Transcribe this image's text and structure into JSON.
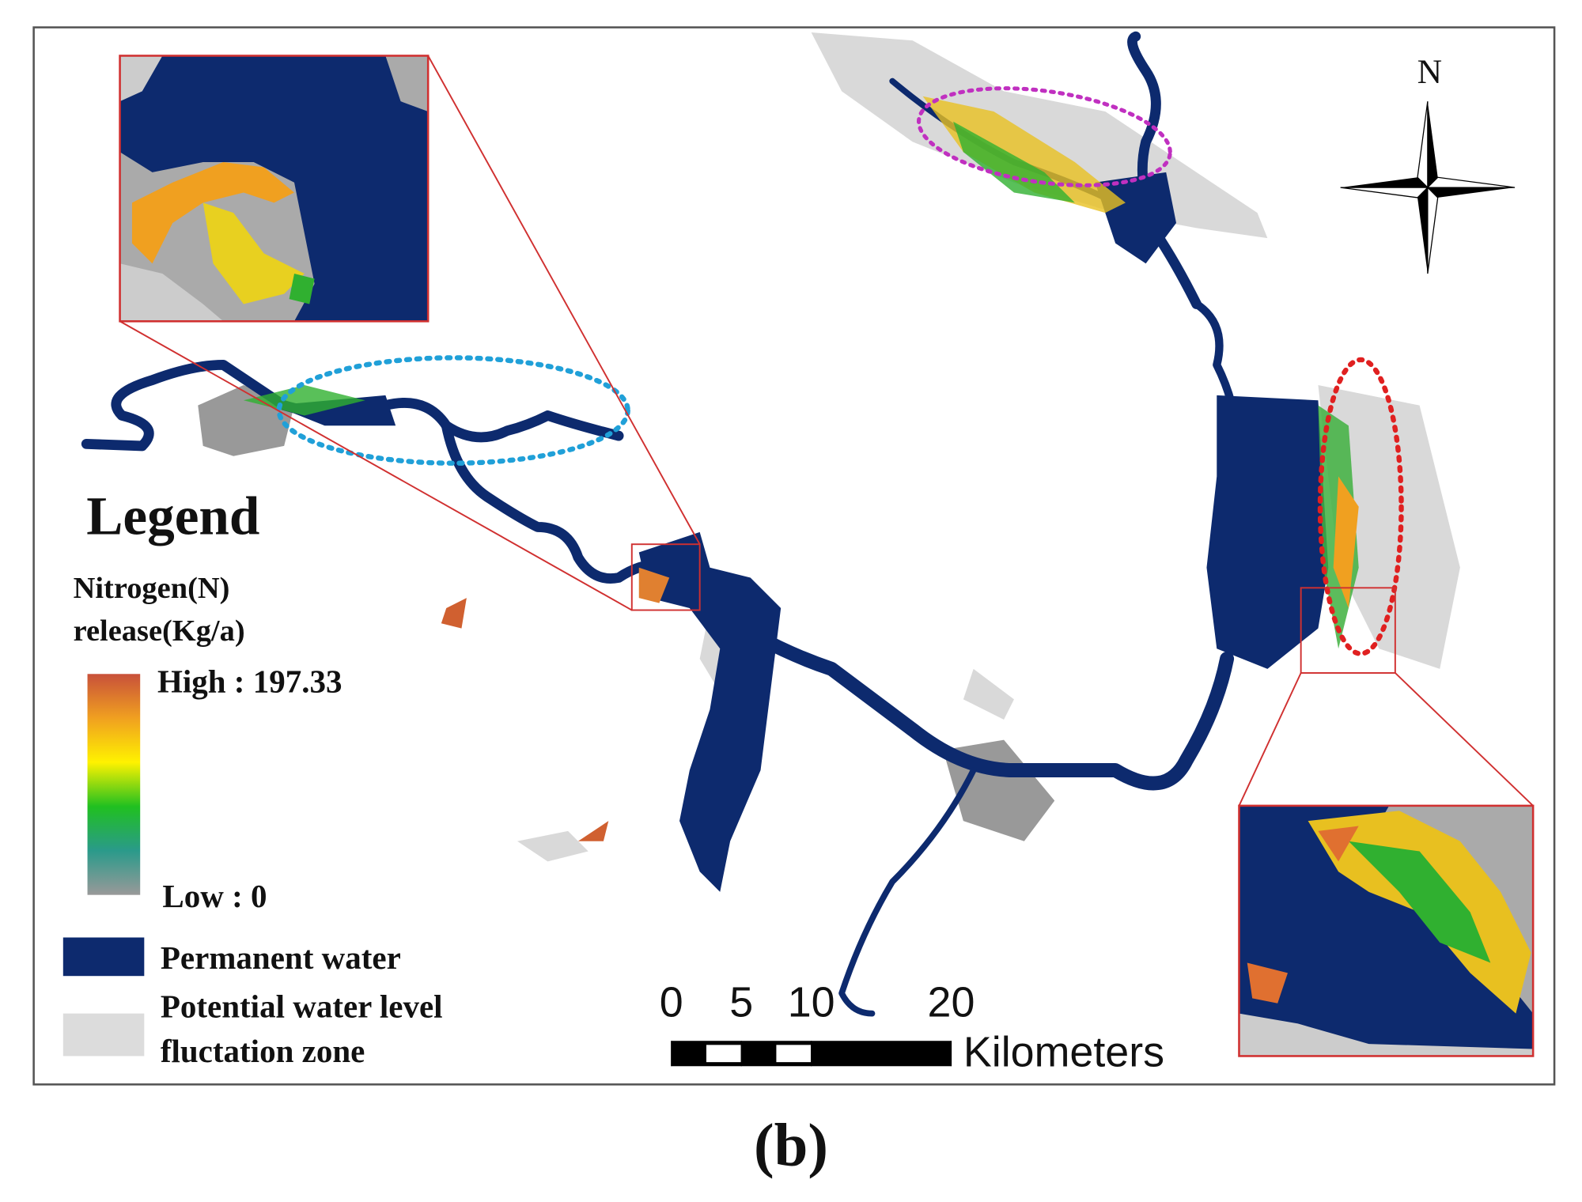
{
  "north_label": "N",
  "legend": {
    "title": "Legend",
    "ramp_title": [
      "Nitrogen(N)",
      "release(Kg/a)"
    ],
    "high_label": "High : 197.33",
    "low_label": "Low : 0",
    "permanent_water": "Permanent water",
    "fluctuation_zone": [
      "Potential water level",
      "fluctation zone"
    ]
  },
  "scale_bar": {
    "ticks": [
      0,
      5,
      10,
      20
    ],
    "unit": "Kilometers"
  },
  "caption": "(b)"
}
